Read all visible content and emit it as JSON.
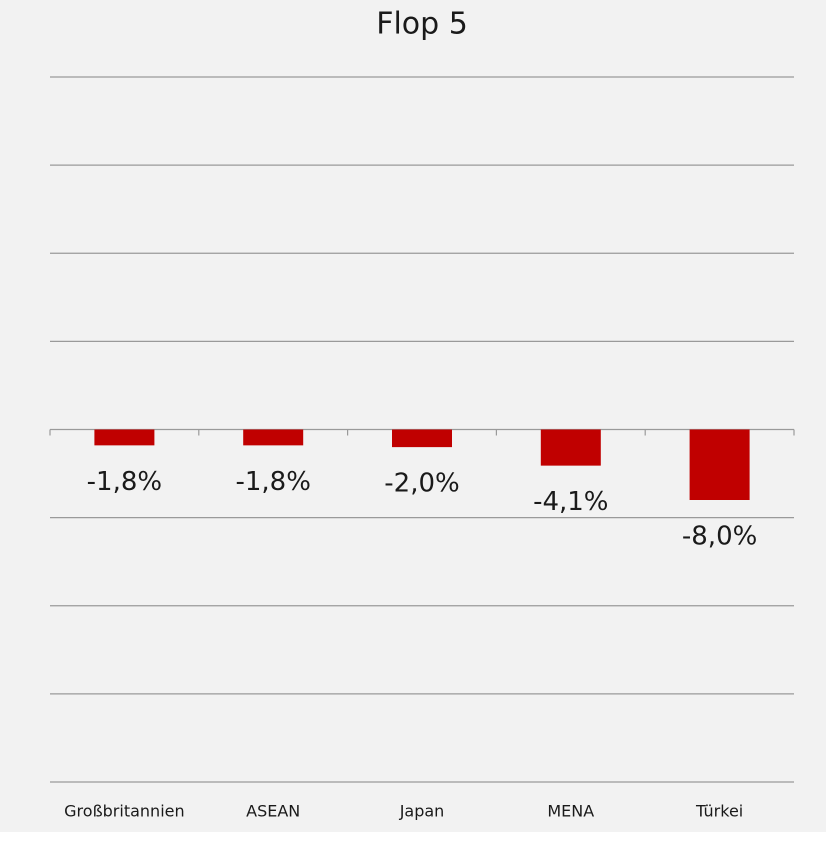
{
  "chart_data": {
    "type": "bar",
    "title": "Flop 5",
    "categories": [
      "Großbritannien",
      "ASEAN",
      "Japan",
      "MENA",
      "Türkei"
    ],
    "values": [
      -1.8,
      -1.8,
      -2.0,
      -4.1,
      -8.0
    ],
    "value_labels": [
      "-1,8%",
      "-1,8%",
      "-2,0%",
      "-4,1%",
      "-8,0%"
    ],
    "color": "#c00000",
    "ylim": [
      -40,
      40
    ],
    "yticks": [
      -40,
      -30,
      -20,
      -10,
      0,
      10,
      20,
      30,
      40
    ],
    "grid": true
  }
}
